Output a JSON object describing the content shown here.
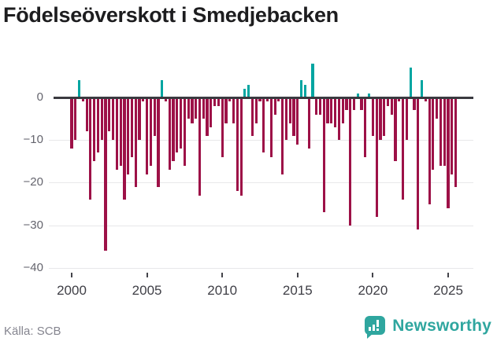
{
  "header": {
    "title": "Födelseöverskott i Smedjebacken"
  },
  "footer": {
    "source": "Källa: SCB",
    "brand": "Newsworthy"
  },
  "colors": {
    "positive": "#00a5a1",
    "negative": "#9d1147",
    "axis_line": "#3a3a40",
    "gridline": "#e8e8ea",
    "year_label": "#3f3f46",
    "value_label": "#65656e",
    "source_text": "#85858f",
    "brand_teal": "#2fa69f",
    "title_text": "#1d1d1f"
  },
  "chart_data": {
    "type": "bar",
    "title": "Födelseöverskott i Smedjebacken",
    "frequency": "quarterly",
    "start": "2000 Q1",
    "end": "2025 Q3",
    "x_tick_labels": [
      "2000",
      "2005",
      "2010",
      "2015",
      "2020",
      "2025"
    ],
    "y_tick_labels": [
      "0",
      "−10",
      "−20",
      "−30",
      "−40"
    ],
    "y_tick_values": [
      0,
      -10,
      -20,
      -30,
      -40
    ],
    "ylim": [
      -40,
      9
    ],
    "grid": "horizontal-only",
    "legend": "none",
    "values": [
      -12,
      -10,
      4,
      -1,
      -8,
      -24,
      -15,
      -13,
      -10,
      -36,
      -8,
      -10,
      -17,
      -16,
      -24,
      -18,
      -14,
      -21,
      -10,
      -1,
      -18,
      -16,
      -9,
      -21,
      4,
      -1,
      -17,
      -15,
      -13,
      -12,
      -16,
      -5,
      -6,
      -5,
      -23,
      -5,
      -9,
      -7,
      -2,
      -2,
      -14,
      -6,
      -1,
      -6,
      -22,
      -23,
      2,
      3,
      -9,
      -6,
      -1,
      -13,
      -1,
      -14,
      -4,
      -1,
      -18,
      -10,
      -6,
      -9,
      -11,
      4,
      3,
      -12,
      8,
      -4,
      -4,
      -27,
      -6,
      -6,
      -7,
      -10,
      -6,
      -3,
      -30,
      -3,
      1,
      -3,
      -14,
      1,
      -9,
      -28,
      -10,
      -9,
      -2,
      -4,
      -15,
      -1,
      -24,
      -10,
      7,
      -3,
      -31,
      4,
      -1,
      -25,
      -17,
      -5,
      -16,
      -16,
      -26,
      -18,
      -21
    ],
    "tick_indices": [
      0,
      20,
      40,
      60,
      80,
      100
    ],
    "positive_color": "#00a5a1",
    "negative_color": "#9d1147"
  }
}
